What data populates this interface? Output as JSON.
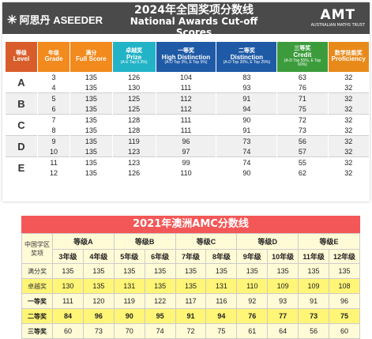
{
  "header": {
    "logo_left_text": "阿思丹 ASEEDER",
    "title_zh": "2024年全国奖项分数线",
    "title_en": "National Awards Cut-off Scores",
    "logo_right_text": "AMT",
    "logo_right_sub": "AUSTRALIAN MATHS TRUST"
  },
  "table1": {
    "columns": [
      {
        "zh": "等级",
        "en": "Level",
        "sub": "",
        "color": "#d95d2b"
      },
      {
        "zh": "年级",
        "en": "Grade",
        "sub": "",
        "color": "#f28a1e"
      },
      {
        "zh": "满分",
        "en": "Full Score",
        "sub": "",
        "color": "#f28a1e"
      },
      {
        "zh": "卓越奖",
        "en": "Prize",
        "sub": "(A-E Top 0.3%)",
        "color": "#23b3c7"
      },
      {
        "zh": "一等奖",
        "en": "High Distinction",
        "sub": "(A-D Top 3%, E Top 5%)",
        "color": "#1f5aa6"
      },
      {
        "zh": "二等奖",
        "en": "Distinction",
        "sub": "(A-D Top 20%, E Top 25%)",
        "color": "#1f5aa6"
      },
      {
        "zh": "三等奖",
        "en": "Credit",
        "sub": "(A-D Top 55%, E Top 60%)",
        "color": "#3c9c3c"
      },
      {
        "zh": "数学技能奖",
        "en": "Proficiency",
        "sub": "",
        "color": "#e88a1a"
      }
    ],
    "rows": [
      {
        "level": "A",
        "grade": "3",
        "full": "135",
        "prize": "126",
        "hd": "104",
        "dist": "83",
        "credit": "63",
        "prof": "32"
      },
      {
        "level": "",
        "grade": "4",
        "full": "135",
        "prize": "130",
        "hd": "111",
        "dist": "93",
        "credit": "76",
        "prof": "32"
      },
      {
        "level": "B",
        "grade": "5",
        "full": "135",
        "prize": "125",
        "hd": "112",
        "dist": "91",
        "credit": "71",
        "prof": "32"
      },
      {
        "level": "",
        "grade": "6",
        "full": "135",
        "prize": "125",
        "hd": "112",
        "dist": "94",
        "credit": "75",
        "prof": "32"
      },
      {
        "level": "C",
        "grade": "7",
        "full": "135",
        "prize": "128",
        "hd": "111",
        "dist": "90",
        "credit": "72",
        "prof": "32"
      },
      {
        "level": "",
        "grade": "8",
        "full": "135",
        "prize": "128",
        "hd": "111",
        "dist": "91",
        "credit": "73",
        "prof": "32"
      },
      {
        "level": "D",
        "grade": "9",
        "full": "135",
        "prize": "119",
        "hd": "96",
        "dist": "73",
        "credit": "56",
        "prof": "32"
      },
      {
        "level": "",
        "grade": "10",
        "full": "135",
        "prize": "123",
        "hd": "97",
        "dist": "74",
        "credit": "57",
        "prof": "32"
      },
      {
        "level": "E",
        "grade": "11",
        "full": "135",
        "prize": "123",
        "hd": "99",
        "dist": "74",
        "credit": "55",
        "prof": "32"
      },
      {
        "level": "",
        "grade": "12",
        "full": "135",
        "prize": "126",
        "hd": "110",
        "dist": "90",
        "credit": "62",
        "prof": "32"
      }
    ]
  },
  "table2": {
    "title": "2021年澳洲AMC分数线",
    "corner": "中国学区奖项",
    "levels": [
      "等级A",
      "等级B",
      "等级C",
      "等级D",
      "等级E"
    ],
    "grades": [
      "3年级",
      "4年级",
      "5年级",
      "6年级",
      "7年级",
      "8年级",
      "9年级",
      "10年级",
      "11年级",
      "12年级"
    ],
    "rows": [
      {
        "label": "满分奖",
        "values": [
          "135",
          "135",
          "135",
          "135",
          "135",
          "135",
          "135",
          "135",
          "135",
          "135"
        ]
      },
      {
        "label": "卓越奖",
        "values": [
          "130",
          "135",
          "131",
          "135",
          "135",
          "131",
          "110",
          "109",
          "109",
          "108"
        ]
      },
      {
        "label": "一等奖",
        "values": [
          "111",
          "120",
          "119",
          "122",
          "117",
          "116",
          "92",
          "93",
          "91",
          "96"
        ]
      },
      {
        "label": "二等奖",
        "values": [
          "84",
          "96",
          "90",
          "95",
          "91",
          "94",
          "76",
          "77",
          "73",
          "75"
        ]
      },
      {
        "label": "三等奖",
        "values": [
          "60",
          "73",
          "70",
          "74",
          "72",
          "75",
          "61",
          "64",
          "56",
          "60"
        ]
      }
    ]
  }
}
